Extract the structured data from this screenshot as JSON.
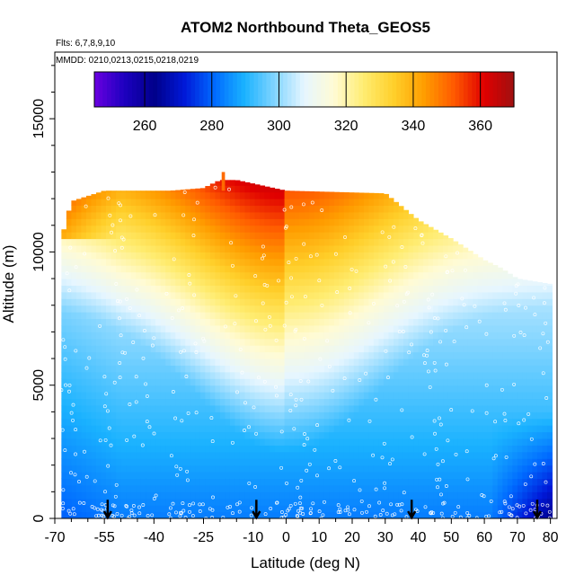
{
  "chart_data": {
    "type": "heatmap",
    "title": "ATOM2 Northbound Theta_GEOS5",
    "flights_note": "Flts: 6,7,8,9,10",
    "dates_note": "MMDD: 0210,0213,0215,0218,0219",
    "xlabel": "Latitude (deg N)",
    "ylabel": "Altitude (m)",
    "xlim": [
      -70,
      82
    ],
    "ylim": [
      0,
      17500
    ],
    "x_ticks": [
      -70,
      -55,
      -40,
      -25,
      -10,
      0,
      10,
      20,
      30,
      40,
      50,
      60,
      70,
      80
    ],
    "y_ticks": [
      0,
      5000,
      10000,
      15000
    ],
    "colorbar": {
      "range": [
        245,
        370
      ],
      "ticks": [
        260,
        280,
        300,
        320,
        340,
        360
      ],
      "colors": [
        "#6a00e0",
        "#1d00c0",
        "#00008a",
        "#0018d8",
        "#006aff",
        "#1ab2ff",
        "#80d4ff",
        "#e6f6ff",
        "#fffbd4",
        "#ffec70",
        "#ffcf2a",
        "#ff9d00",
        "#ff5a00",
        "#e00000",
        "#a01010"
      ]
    },
    "color_field": {
      "description": "potential temperature (K) by latitude and altitude",
      "altitude_top_m_by_latitude": [
        [
          -68,
          10500
        ],
        [
          -65,
          11900
        ],
        [
          -55,
          12300
        ],
        [
          -35,
          12300
        ],
        [
          -25,
          12400
        ],
        [
          -20,
          12700
        ],
        [
          -15,
          12700
        ],
        [
          0,
          12300
        ],
        [
          30,
          12200
        ],
        [
          40,
          11200
        ],
        [
          50,
          10500
        ],
        [
          60,
          9700
        ],
        [
          65,
          9400
        ],
        [
          70,
          9000
        ],
        [
          80,
          8800
        ]
      ]
    },
    "arrow_latitudes": [
      -54,
      -9,
      38,
      76
    ],
    "grid": false,
    "legend": "colorbar top"
  }
}
